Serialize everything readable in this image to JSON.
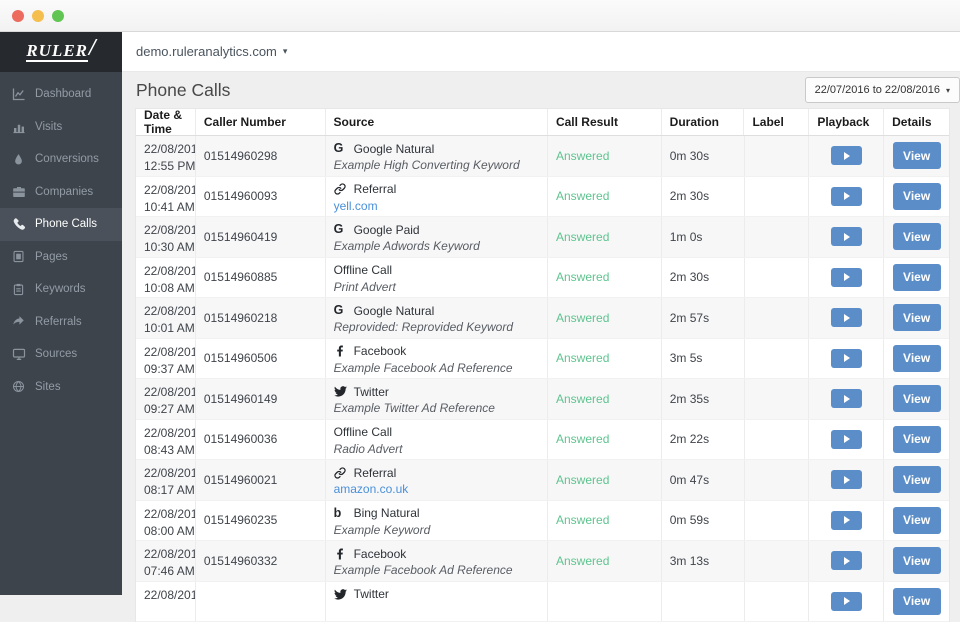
{
  "window": {
    "buttons": [
      {
        "name": "close",
        "color": "#ed6a5f"
      },
      {
        "name": "minimize",
        "color": "#f5bf4f"
      },
      {
        "name": "zoom",
        "color": "#61c554"
      }
    ]
  },
  "sidebar": {
    "logo_text": "RULER",
    "logo_slash": "/",
    "items": [
      {
        "label": "Dashboard",
        "icon": "line-chart-icon",
        "active": false
      },
      {
        "label": "Visits",
        "icon": "bar-chart-icon",
        "active": false
      },
      {
        "label": "Conversions",
        "icon": "droplet-icon",
        "active": false
      },
      {
        "label": "Companies",
        "icon": "briefcase-icon",
        "active": false
      },
      {
        "label": "Phone Calls",
        "icon": "phone-icon",
        "active": true
      },
      {
        "label": "Pages",
        "icon": "page-icon",
        "active": false
      },
      {
        "label": "Keywords",
        "icon": "clipboard-icon",
        "active": false
      },
      {
        "label": "Referrals",
        "icon": "curved-arrow-icon",
        "active": false
      },
      {
        "label": "Sources",
        "icon": "monitor-icon",
        "active": false
      },
      {
        "label": "Sites",
        "icon": "globe-icon",
        "active": false
      }
    ]
  },
  "header": {
    "domain": "demo.ruleranalytics.com",
    "caret": "▾"
  },
  "page": {
    "title": "Phone Calls",
    "date_range": "22/07/2016 to 22/08/2016",
    "caret": "▾"
  },
  "table": {
    "columns": [
      "Date & Time",
      "Caller Number",
      "Source",
      "Call Result",
      "Duration",
      "Label",
      "Playback",
      "Details"
    ],
    "view_button_label": "View",
    "rows": [
      {
        "date": "22/08/2016",
        "time": "12:55 PM",
        "caller": "01514960298",
        "source_icon": "google-icon",
        "source": "Google Natural",
        "detail": "Example High Converting Keyword",
        "detail_type": "text",
        "result": "Answered",
        "duration": "0m 30s",
        "label": ""
      },
      {
        "date": "22/08/2016",
        "time": "10:41 AM",
        "caller": "01514960093",
        "source_icon": "link-icon",
        "source": "Referral",
        "detail": "yell.com",
        "detail_type": "link",
        "result": "Answered",
        "duration": "2m 30s",
        "label": ""
      },
      {
        "date": "22/08/2016",
        "time": "10:30 AM",
        "caller": "01514960419",
        "source_icon": "google-icon",
        "source": "Google Paid",
        "detail": "Example Adwords Keyword",
        "detail_type": "text",
        "result": "Answered",
        "duration": "1m 0s",
        "label": ""
      },
      {
        "date": "22/08/2016",
        "time": "10:08 AM",
        "caller": "01514960885",
        "source_icon": "",
        "source": "Offline Call",
        "detail": "Print Advert",
        "detail_type": "text",
        "result": "Answered",
        "duration": "2m 30s",
        "label": ""
      },
      {
        "date": "22/08/2016",
        "time": "10:01 AM",
        "caller": "01514960218",
        "source_icon": "google-icon",
        "source": "Google Natural",
        "detail": "Reprovided: Reprovided Keyword",
        "detail_type": "text",
        "result": "Answered",
        "duration": "2m 57s",
        "label": ""
      },
      {
        "date": "22/08/2016",
        "time": "09:37 AM",
        "caller": "01514960506",
        "source_icon": "facebook-icon",
        "source": "Facebook",
        "detail": "Example Facebook Ad Reference",
        "detail_type": "text",
        "result": "Answered",
        "duration": "3m 5s",
        "label": ""
      },
      {
        "date": "22/08/2016",
        "time": "09:27 AM",
        "caller": "01514960149",
        "source_icon": "twitter-icon",
        "source": "Twitter",
        "detail": "Example Twitter Ad Reference",
        "detail_type": "text",
        "result": "Answered",
        "duration": "2m 35s",
        "label": ""
      },
      {
        "date": "22/08/2016",
        "time": "08:43 AM",
        "caller": "01514960036",
        "source_icon": "",
        "source": "Offline Call",
        "detail": "Radio Advert",
        "detail_type": "text",
        "result": "Answered",
        "duration": "2m 22s",
        "label": ""
      },
      {
        "date": "22/08/2016",
        "time": "08:17 AM",
        "caller": "01514960021",
        "source_icon": "link-icon",
        "source": "Referral",
        "detail": "amazon.co.uk",
        "detail_type": "link",
        "result": "Answered",
        "duration": "0m 47s",
        "label": ""
      },
      {
        "date": "22/08/2016",
        "time": "08:00 AM",
        "caller": "01514960235",
        "source_icon": "bing-icon",
        "source": "Bing Natural",
        "detail": "Example Keyword",
        "detail_type": "text",
        "result": "Answered",
        "duration": "0m 59s",
        "label": ""
      },
      {
        "date": "22/08/2016",
        "time": "07:46 AM",
        "caller": "01514960332",
        "source_icon": "facebook-icon",
        "source": "Facebook",
        "detail": "Example Facebook Ad Reference",
        "detail_type": "text",
        "result": "Answered",
        "duration": "3m 13s",
        "label": ""
      },
      {
        "date": "22/08/2016",
        "time": "",
        "caller": "",
        "source_icon": "twitter-icon",
        "source": "Twitter",
        "detail": "",
        "detail_type": "text",
        "result": "",
        "duration": "",
        "label": ""
      }
    ]
  },
  "colors": {
    "accent_blue": "#5b8ec8",
    "answered_green": "#5ec48f",
    "link_blue": "#4a90d9",
    "sidebar_bg": "#3e444c",
    "sidebar_active_bg": "#4a515a",
    "logo_bg": "#26292e"
  }
}
